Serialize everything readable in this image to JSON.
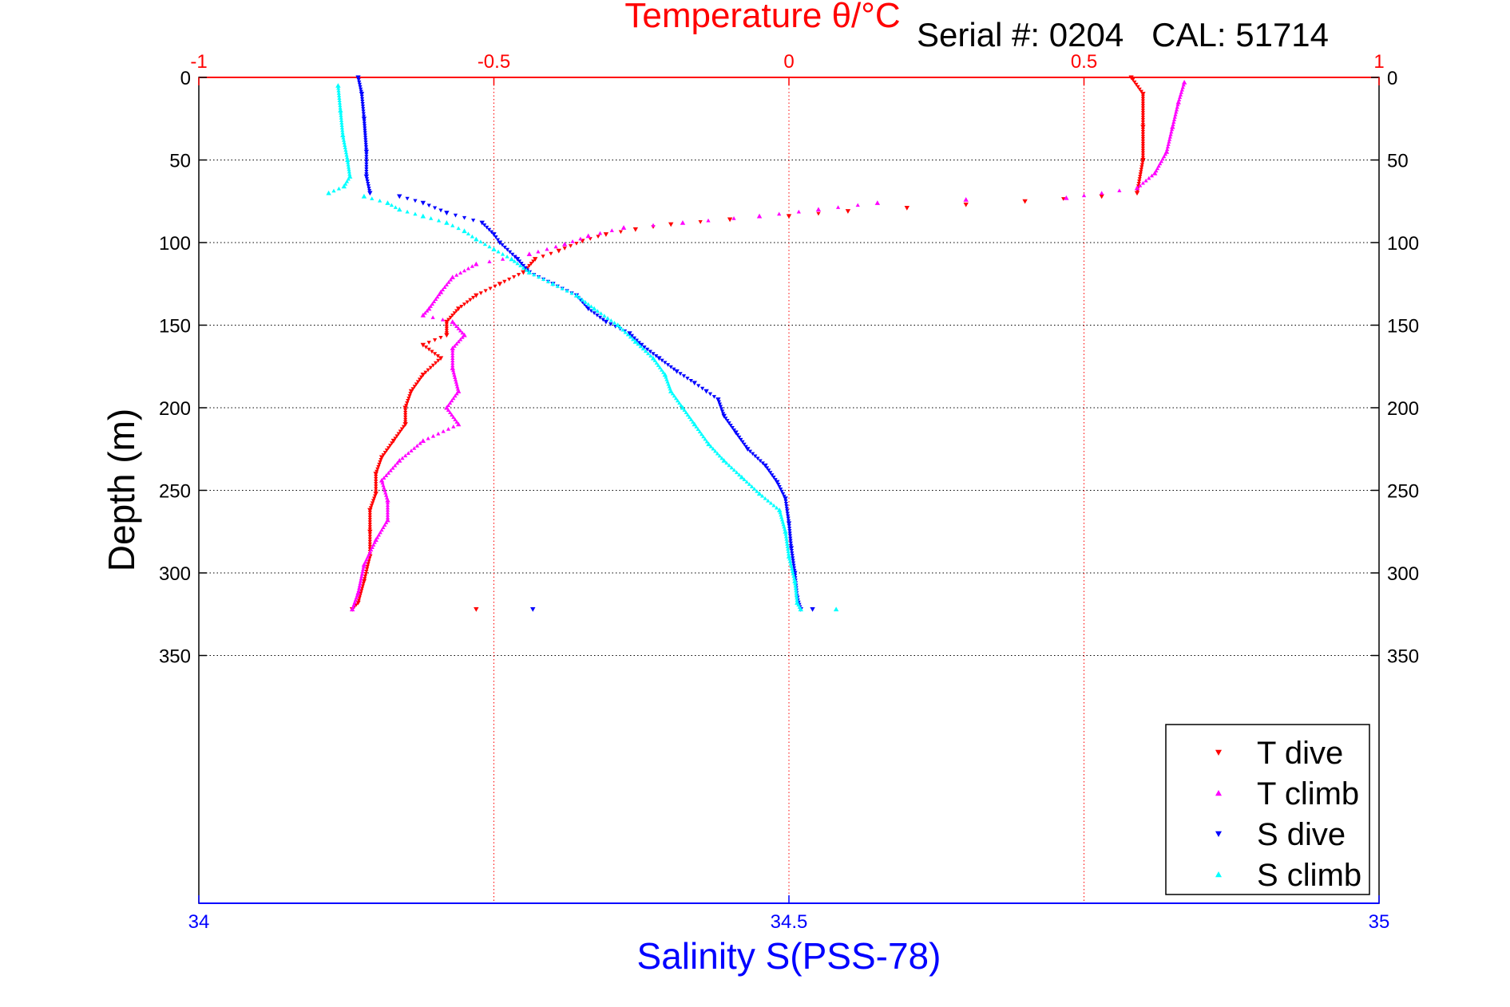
{
  "chart_data": {
    "type": "scatter",
    "title": "Temperature θ/°C",
    "subtitle": "Serial #: 0204   CAL: 51714",
    "xlabel_bottom": "Salinity S(PSS-78)",
    "xlabel_top": "Temperature θ/°C",
    "ylabel": "Depth (m)",
    "x_bottom": {
      "lim": [
        34,
        35
      ],
      "ticks": [
        34,
        34.5,
        35
      ],
      "tick_labels": [
        "34",
        "34.5",
        "35"
      ]
    },
    "x_top": {
      "lim": [
        -1,
        1
      ],
      "ticks": [
        -1,
        -0.5,
        0,
        0.5,
        1
      ],
      "tick_labels": [
        "-1",
        "-0.5",
        "0",
        "0.5",
        "1"
      ]
    },
    "y": {
      "lim": [
        0,
        500
      ],
      "reversed": true,
      "ticks": [
        0,
        50,
        100,
        150,
        200,
        250,
        300,
        350
      ],
      "tick_labels": [
        "0",
        "50",
        "100",
        "150",
        "200",
        "250",
        "300",
        "350"
      ]
    },
    "grid": true,
    "legend": {
      "position": "bottom-right",
      "entries": [
        "T dive",
        "T climb",
        "S dive",
        "S climb"
      ]
    },
    "colors": {
      "T dive": "#ff0000",
      "T climb": "#ff00ff",
      "S dive": "#0000ff",
      "S climb": "#00ffff",
      "top_axis": "#ff0000",
      "bottom_axis": "#0000ff"
    },
    "series": [
      {
        "name": "T dive",
        "axis": "temperature",
        "marker": "triangle-down",
        "points": [
          [
            0.58,
            0
          ],
          [
            0.6,
            10
          ],
          [
            0.6,
            30
          ],
          [
            0.6,
            50
          ],
          [
            0.59,
            70
          ],
          [
            0.53,
            72
          ],
          [
            0.4,
            75
          ],
          [
            0.3,
            77
          ],
          [
            0.2,
            79
          ],
          [
            0.1,
            81
          ],
          [
            0.0,
            84
          ],
          [
            -0.1,
            86
          ],
          [
            -0.2,
            89
          ],
          [
            -0.26,
            92
          ],
          [
            -0.31,
            95
          ],
          [
            -0.35,
            99
          ],
          [
            -0.39,
            105
          ],
          [
            -0.43,
            110
          ],
          [
            -0.45,
            118
          ],
          [
            -0.49,
            125
          ],
          [
            -0.53,
            132
          ],
          [
            -0.56,
            140
          ],
          [
            -0.58,
            148
          ],
          [
            -0.58,
            156
          ],
          [
            -0.62,
            162
          ],
          [
            -0.59,
            170
          ],
          [
            -0.62,
            180
          ],
          [
            -0.64,
            190
          ],
          [
            -0.65,
            200
          ],
          [
            -0.65,
            210
          ],
          [
            -0.67,
            220
          ],
          [
            -0.69,
            230
          ],
          [
            -0.7,
            240
          ],
          [
            -0.7,
            252
          ],
          [
            -0.71,
            262
          ],
          [
            -0.71,
            275
          ],
          [
            -0.71,
            290
          ],
          [
            -0.72,
            305
          ],
          [
            -0.73,
            318
          ],
          [
            -0.74,
            322
          ],
          [
            -0.53,
            322
          ]
        ]
      },
      {
        "name": "T climb",
        "axis": "temperature",
        "marker": "triangle-up",
        "points": [
          [
            0.67,
            3
          ],
          [
            0.66,
            15
          ],
          [
            0.65,
            30
          ],
          [
            0.64,
            45
          ],
          [
            0.62,
            58
          ],
          [
            0.59,
            67
          ],
          [
            0.47,
            73
          ],
          [
            0.3,
            74
          ],
          [
            0.15,
            76
          ],
          [
            0.05,
            80
          ],
          [
            -0.05,
            84
          ],
          [
            -0.18,
            88
          ],
          [
            -0.28,
            91
          ],
          [
            -0.34,
            96
          ],
          [
            -0.38,
            101
          ],
          [
            -0.44,
            107
          ],
          [
            -0.53,
            113
          ],
          [
            -0.57,
            121
          ],
          [
            -0.59,
            130
          ],
          [
            -0.61,
            140
          ],
          [
            -0.62,
            144
          ],
          [
            -0.57,
            148
          ],
          [
            -0.55,
            156
          ],
          [
            -0.57,
            164
          ],
          [
            -0.57,
            176
          ],
          [
            -0.56,
            190
          ],
          [
            -0.58,
            200
          ],
          [
            -0.56,
            210
          ],
          [
            -0.62,
            220
          ],
          [
            -0.66,
            232
          ],
          [
            -0.69,
            244
          ],
          [
            -0.68,
            256
          ],
          [
            -0.68,
            268
          ],
          [
            -0.7,
            280
          ],
          [
            -0.72,
            295
          ],
          [
            -0.73,
            312
          ],
          [
            -0.74,
            322
          ]
        ]
      },
      {
        "name": "S dive",
        "axis": "salinity",
        "marker": "triangle-down",
        "points": [
          [
            34.135,
            0
          ],
          [
            34.138,
            10
          ],
          [
            34.14,
            25
          ],
          [
            34.142,
            45
          ],
          [
            34.142,
            60
          ],
          [
            34.145,
            70
          ],
          [
            34.17,
            72
          ],
          [
            34.19,
            76
          ],
          [
            34.21,
            82
          ],
          [
            34.24,
            88
          ],
          [
            34.25,
            95
          ],
          [
            34.255,
            100
          ],
          [
            34.27,
            110
          ],
          [
            34.28,
            118
          ],
          [
            34.3,
            125
          ],
          [
            34.32,
            132
          ],
          [
            34.33,
            140
          ],
          [
            34.345,
            148
          ],
          [
            34.365,
            155
          ],
          [
            34.375,
            162
          ],
          [
            34.39,
            170
          ],
          [
            34.405,
            178
          ],
          [
            34.42,
            185
          ],
          [
            34.43,
            190
          ],
          [
            34.44,
            195
          ],
          [
            34.445,
            205
          ],
          [
            34.455,
            215
          ],
          [
            34.465,
            225
          ],
          [
            34.48,
            235
          ],
          [
            34.49,
            245
          ],
          [
            34.497,
            255
          ],
          [
            34.5,
            270
          ],
          [
            34.502,
            285
          ],
          [
            34.505,
            300
          ],
          [
            34.507,
            315
          ],
          [
            34.51,
            322
          ],
          [
            34.283,
            322
          ],
          [
            34.52,
            322
          ]
        ]
      },
      {
        "name": "S climb",
        "axis": "salinity",
        "marker": "triangle-up",
        "points": [
          [
            34.118,
            5
          ],
          [
            34.12,
            20
          ],
          [
            34.122,
            35
          ],
          [
            34.126,
            50
          ],
          [
            34.128,
            60
          ],
          [
            34.123,
            66
          ],
          [
            34.11,
            70
          ],
          [
            34.14,
            72
          ],
          [
            34.16,
            76
          ],
          [
            34.17,
            80
          ],
          [
            34.19,
            84
          ],
          [
            34.21,
            88
          ],
          [
            34.225,
            93
          ],
          [
            34.235,
            98
          ],
          [
            34.25,
            104
          ],
          [
            34.265,
            110
          ],
          [
            34.28,
            118
          ],
          [
            34.3,
            125
          ],
          [
            34.32,
            132
          ],
          [
            34.335,
            140
          ],
          [
            34.355,
            150
          ],
          [
            34.37,
            160
          ],
          [
            34.385,
            170
          ],
          [
            34.395,
            180
          ],
          [
            34.4,
            190
          ],
          [
            34.41,
            200
          ],
          [
            34.42,
            210
          ],
          [
            34.432,
            222
          ],
          [
            34.445,
            232
          ],
          [
            34.46,
            242
          ],
          [
            34.475,
            252
          ],
          [
            34.492,
            262
          ],
          [
            34.497,
            275
          ],
          [
            34.5,
            290
          ],
          [
            34.505,
            305
          ],
          [
            34.507,
            318
          ],
          [
            34.51,
            322
          ],
          [
            34.54,
            322
          ]
        ]
      }
    ]
  }
}
